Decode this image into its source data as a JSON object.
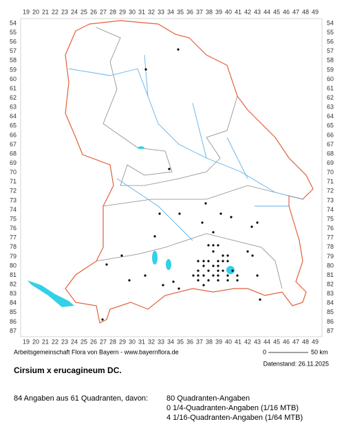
{
  "grid": {
    "columns": [
      19,
      20,
      21,
      22,
      23,
      24,
      25,
      26,
      27,
      28,
      29,
      30,
      31,
      32,
      33,
      34,
      35,
      36,
      37,
      38,
      39,
      40,
      41,
      42,
      43,
      44,
      45,
      46,
      47,
      48,
      49
    ],
    "rows": [
      54,
      55,
      56,
      57,
      58,
      59,
      60,
      61,
      62,
      63,
      64,
      65,
      66,
      67,
      68,
      69,
      70,
      71,
      72,
      73,
      74,
      75,
      76,
      77,
      78,
      79,
      80,
      81,
      82,
      83,
      84,
      85,
      86,
      87
    ]
  },
  "footer": {
    "credit": "Arbeitsgemeinschaft Flora von Bayern - www.bayernflora.de",
    "scale_start": "0",
    "scale_end": "50 km",
    "date": "Datenstand: 26.11.2025"
  },
  "title": "Cirsium x erucagineum DC.",
  "summary": "84 Angaben aus 61 Quadranten, davon:",
  "details": [
    "80 Quadranten-Angaben",
    "0 1/4-Quadranten-Angaben (1/16 MTB)",
    "4 1/16-Quadranten-Angaben (1/64 MTB)"
  ]
}
